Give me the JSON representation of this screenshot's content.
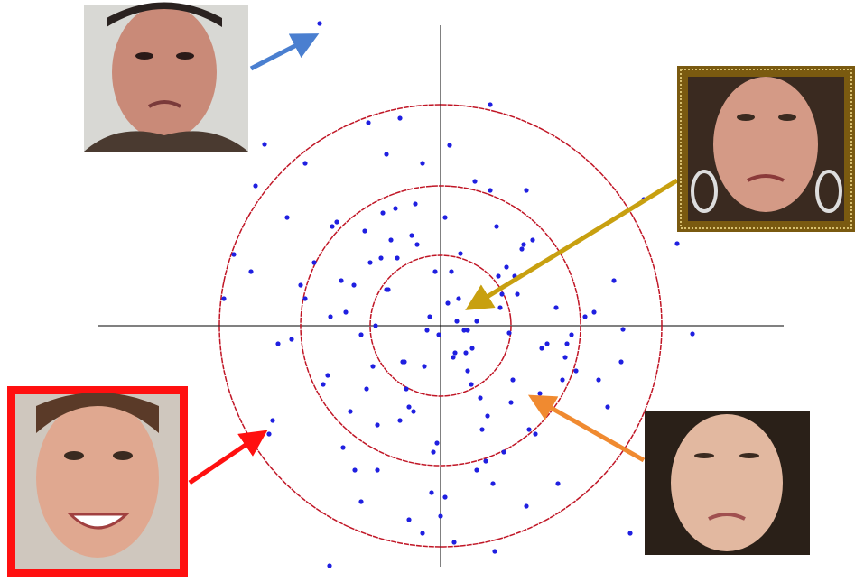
{
  "chart_data": {
    "type": "scatter",
    "color": "#1f1fe0",
    "xlim": [
      -380,
      380
    ],
    "ylim": [
      -270,
      340
    ],
    "x": [
      -12,
      35,
      -58,
      80,
      -105,
      22,
      140,
      -30,
      64,
      -88,
      5,
      -150,
      110,
      -42,
      18,
      92,
      -70,
      48,
      -125,
      160,
      -8,
      73,
      -96,
      28,
      -55,
      120,
      -15,
      55,
      -180,
      85,
      40,
      -66,
      12,
      -38,
      98,
      -110,
      66,
      -20,
      138,
      -84,
      30,
      -4,
      76,
      -140,
      52,
      -28,
      170,
      -75,
      10,
      112,
      -50,
      44,
      -95,
      26,
      -130,
      62,
      -10,
      150,
      -60,
      90,
      -35,
      8,
      -165,
      105,
      -82,
      38,
      -18,
      128,
      -48,
      70,
      -115,
      16,
      -100,
      82,
      -2,
      58,
      -72,
      135,
      -26,
      46,
      -155,
      95,
      -40,
      20,
      -88,
      118,
      -64,
      34,
      -6,
      78,
      -122,
      50,
      -32,
      145,
      -78,
      14,
      -108,
      68,
      -45,
      102,
      200,
      -210,
      225,
      -190,
      -240,
      185,
      -205,
      -35,
      60,
      -150,
      130,
      -80,
      95,
      -120,
      40,
      210,
      -60,
      175,
      -170,
      5,
      -134,
      262,
      279,
      -229,
      -195,
      -186,
      -123,
      0,
      202,
      192,
      30,
      -45,
      15,
      -20,
      55,
      -70
    ],
    "y": [
      10,
      -25,
      40,
      -60,
      15,
      80,
      -20,
      -95,
      55,
      -10,
      120,
      30,
      -75,
      -40,
      5,
      90,
      -110,
      25,
      -55,
      10,
      -140,
      65,
      45,
      -30,
      95,
      -85,
      -5,
      150,
      -20,
      35,
      -160,
      75,
      60,
      -70,
      -115,
      50,
      20,
      180,
      -35,
      105,
      -50,
      -130,
      -8,
      70,
      -100,
      135,
      15,
      -45,
      200,
      -25,
      130,
      -80,
      -160,
      -5,
      -65,
      110,
      -185,
      -50,
      40,
      85,
      -90,
      25,
      -15,
      -120,
      -70,
      160,
      -45,
      20,
      75,
      -140,
      115,
      -30,
      -95,
      55,
      -10,
      -175,
      0,
      -60,
      90,
      -115,
      45,
      150,
      -40,
      30,
      -195,
      -20,
      125,
      -65,
      60,
      -85,
      10,
      -150,
      100,
      -10,
      70,
      -35,
      -135,
      35,
      -105,
      95,
      -40,
      60,
      140,
      -120,
      30,
      -90,
      155,
      -215,
      -250,
      180,
      -175,
      225,
      -200,
      110,
      5,
      -230,
      190,
      -60,
      120,
      -190,
      335,
      91,
      -9,
      79,
      201,
      -105,
      -266,
      -211,
      -4,
      50,
      -5,
      230,
      -240,
      -230,
      245,
      -160
    ]
  }
}
